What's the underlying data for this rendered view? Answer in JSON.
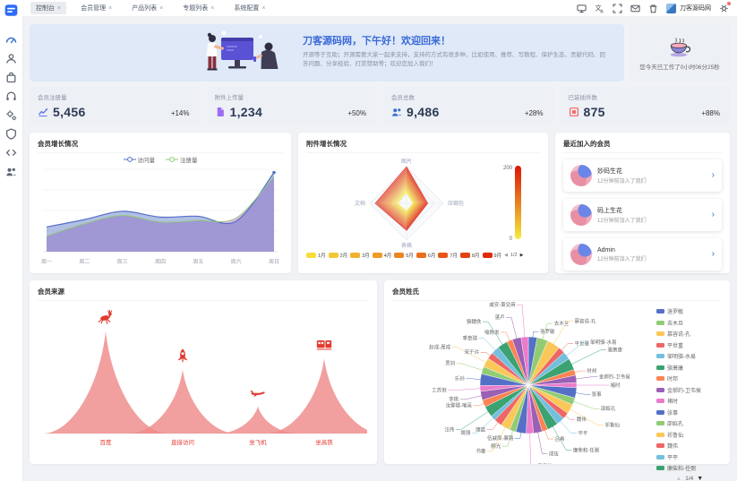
{
  "topbar": {
    "brand": "刀客源码网",
    "icons": [
      "monitor-icon",
      "translate-icon",
      "fullscreen-icon",
      "message-icon",
      "trash-icon"
    ]
  },
  "tabs": [
    {
      "label": "控制台",
      "active": true
    },
    {
      "label": "会员管理",
      "active": false
    },
    {
      "label": "产品列表",
      "active": false
    },
    {
      "label": "专题列表",
      "active": false
    },
    {
      "label": "系统配置",
      "active": false
    }
  ],
  "sidebar": {
    "logo_icon": "app-logo",
    "items": [
      {
        "icon": "dashboard-icon",
        "active": true
      },
      {
        "icon": "member-icon",
        "active": false
      },
      {
        "icon": "product-icon",
        "active": false
      },
      {
        "icon": "headset-icon",
        "active": false
      },
      {
        "icon": "gears-icon",
        "active": false
      },
      {
        "icon": "shield-icon",
        "active": false
      },
      {
        "icon": "code-icon",
        "active": false
      },
      {
        "icon": "team-icon",
        "active": false
      }
    ]
  },
  "banner": {
    "title": "刀客源码网，下午好！欢迎回来！",
    "subtitle": "开源等于互助；开源需要大家一起来支持，支持的方式有很多种，比如使用、推荐、写教程、保护生态、贡献代码、回答问题、分享经验、打赏赞助等；欢迎您加入我们！"
  },
  "worktime": {
    "icon": "coffee-icon",
    "text": "您今天已工作了0小时06分25秒"
  },
  "stats": [
    {
      "label": "会员注册量",
      "icon": "trend-icon",
      "color": "#6777ef",
      "value": "5,456",
      "delta": "+14%"
    },
    {
      "label": "附件上传量",
      "icon": "file-icon",
      "color": "#9c6cf5",
      "value": "1,234",
      "delta": "+50%"
    },
    {
      "label": "会员总数",
      "icon": "users-icon",
      "color": "#3b6fd0",
      "value": "9,486",
      "delta": "+28%"
    },
    {
      "label": "已装插件数",
      "icon": "plugin-icon",
      "color": "#f56c6c",
      "value": "875",
      "delta": "+88%"
    }
  ],
  "panels": {
    "recent_title": "最近加入的会员"
  },
  "recent_members": [
    {
      "name": "妙码生花",
      "time": "12分钟前加入了我们"
    },
    {
      "name": "码上生花",
      "time": "12分钟前加入了我们"
    },
    {
      "name": "Admin",
      "time": "12分钟前加入了我们"
    }
  ],
  "chart_data": [
    {
      "id": "member-growth",
      "type": "line",
      "title": "会员增长情况",
      "categories": [
        "周一",
        "周二",
        "周三",
        "周四",
        "周五",
        "周六",
        "周日"
      ],
      "series": [
        {
          "name": "访问量",
          "color": "#5470c6",
          "fill": "rgba(84,112,198,0.45)",
          "values": [
            60,
            78,
            98,
            84,
            86,
            74,
            192
          ]
        },
        {
          "name": "注册量",
          "color": "#91cc75",
          "fill": "rgba(196,125,201,0.55)",
          "values": [
            38,
            68,
            88,
            72,
            76,
            82,
            183
          ]
        }
      ],
      "ylim": [
        0,
        200
      ],
      "legend_position": "top",
      "grid": true
    },
    {
      "id": "attachment-growth",
      "type": "radar",
      "title": "附件增长情况",
      "indicators": [
        "图片",
        "压缩包",
        "表格",
        "文档"
      ],
      "max": 200,
      "visual_map": {
        "min": 0,
        "max": 200,
        "color_low": "#f5ec3e",
        "color_high": "#dc1405"
      },
      "series": [
        {
          "name": "1月",
          "values": [
            62,
            35,
            43,
            50
          ]
        },
        {
          "name": "2月",
          "values": [
            79,
            45,
            56,
            65
          ]
        },
        {
          "name": "3月",
          "values": [
            96,
            55,
            69,
            80
          ]
        },
        {
          "name": "4月",
          "values": [
            113,
            65,
            82,
            95
          ]
        },
        {
          "name": "5月",
          "values": [
            130,
            75,
            95,
            110
          ]
        },
        {
          "name": "6月",
          "values": [
            147,
            85,
            108,
            125
          ]
        },
        {
          "name": "7月",
          "values": [
            164,
            95,
            121,
            140
          ]
        },
        {
          "name": "8月",
          "values": [
            181,
            105,
            134,
            155
          ]
        },
        {
          "name": "9月",
          "values": [
            198,
            115,
            147,
            170
          ]
        }
      ],
      "legend_page": "1/2"
    },
    {
      "id": "member-source",
      "type": "pictorialBar",
      "title": "会员来源",
      "categories": [
        "百度",
        "直接访问",
        "坐飞机",
        "坐高铁"
      ],
      "values": [
        120,
        75,
        32,
        88
      ],
      "icons": [
        "deer-icon",
        "rocket-icon",
        "plane-icon",
        "train-icon"
      ],
      "color": "#ef8a8a",
      "label_color": "#e23b30"
    },
    {
      "id": "member-surname",
      "type": "pie",
      "title": "会员姓氏",
      "palette": [
        "#5470c6",
        "#91cc75",
        "#fac858",
        "#ee6666",
        "#73c0de",
        "#3ba272",
        "#fc8452",
        "#9a60b4",
        "#ea7ccc"
      ],
      "legend_page": "1/4",
      "legend_visible_count": 15,
      "items": [
        {
          "name": "洛罗敏",
          "value": 1.2
        },
        {
          "name": "去木旦",
          "value": 1.5
        },
        {
          "name": "慕容说-孔",
          "value": 1.8
        },
        {
          "name": "平世重",
          "value": 0.9
        },
        {
          "name": "邹明骆-水易",
          "value": 1.1
        },
        {
          "name": "骆萧康",
          "value": 1.6
        },
        {
          "name": "时邦",
          "value": 0.8
        },
        {
          "name": "金郝约-卫韦侯",
          "value": 1.0
        },
        {
          "name": "褚时",
          "value": 0.7
        },
        {
          "name": "张事",
          "value": 1.4
        },
        {
          "name": "邵姒孔",
          "value": 1.0
        },
        {
          "name": "祁鲁仙",
          "value": 1.3
        },
        {
          "name": "魏伟",
          "value": 0.9
        },
        {
          "name": "平平",
          "value": 1.1
        },
        {
          "name": "廉柴和-任弼",
          "value": 1.5
        },
        {
          "name": "吕希",
          "value": 0.8
        },
        {
          "name": "成伍",
          "value": 1.2
        },
        {
          "name": "尹云杜",
          "value": 1.0
        },
        {
          "name": "伍戚周-廉路",
          "value": 1.4
        },
        {
          "name": "郦光",
          "value": 0.9
        },
        {
          "name": "书童",
          "value": 1.3
        },
        {
          "name": "康蓝",
          "value": 1.1
        },
        {
          "name": "姚强",
          "value": 0.7
        },
        {
          "name": "汪炜",
          "value": 1.5
        },
        {
          "name": "汝鄢璩-喻吴",
          "value": 1.0
        },
        {
          "name": "李桃",
          "value": 1.2
        },
        {
          "name": "工苏倪",
          "value": 0.8
        },
        {
          "name": "乐孙",
          "value": 1.6
        },
        {
          "name": "贾刘",
          "value": 1.0
        },
        {
          "name": "赵成-周成",
          "value": 1.3
        },
        {
          "name": "宋干许",
          "value": 0.9
        },
        {
          "name": "季章瑞",
          "value": 1.1
        },
        {
          "name": "骆魏佚",
          "value": 1.4
        },
        {
          "name": "喻陈发",
          "value": 0.8
        },
        {
          "name": "湛卢",
          "value": 1.2
        },
        {
          "name": "戚安-萧殳麻",
          "value": 1.0
        }
      ]
    }
  ]
}
